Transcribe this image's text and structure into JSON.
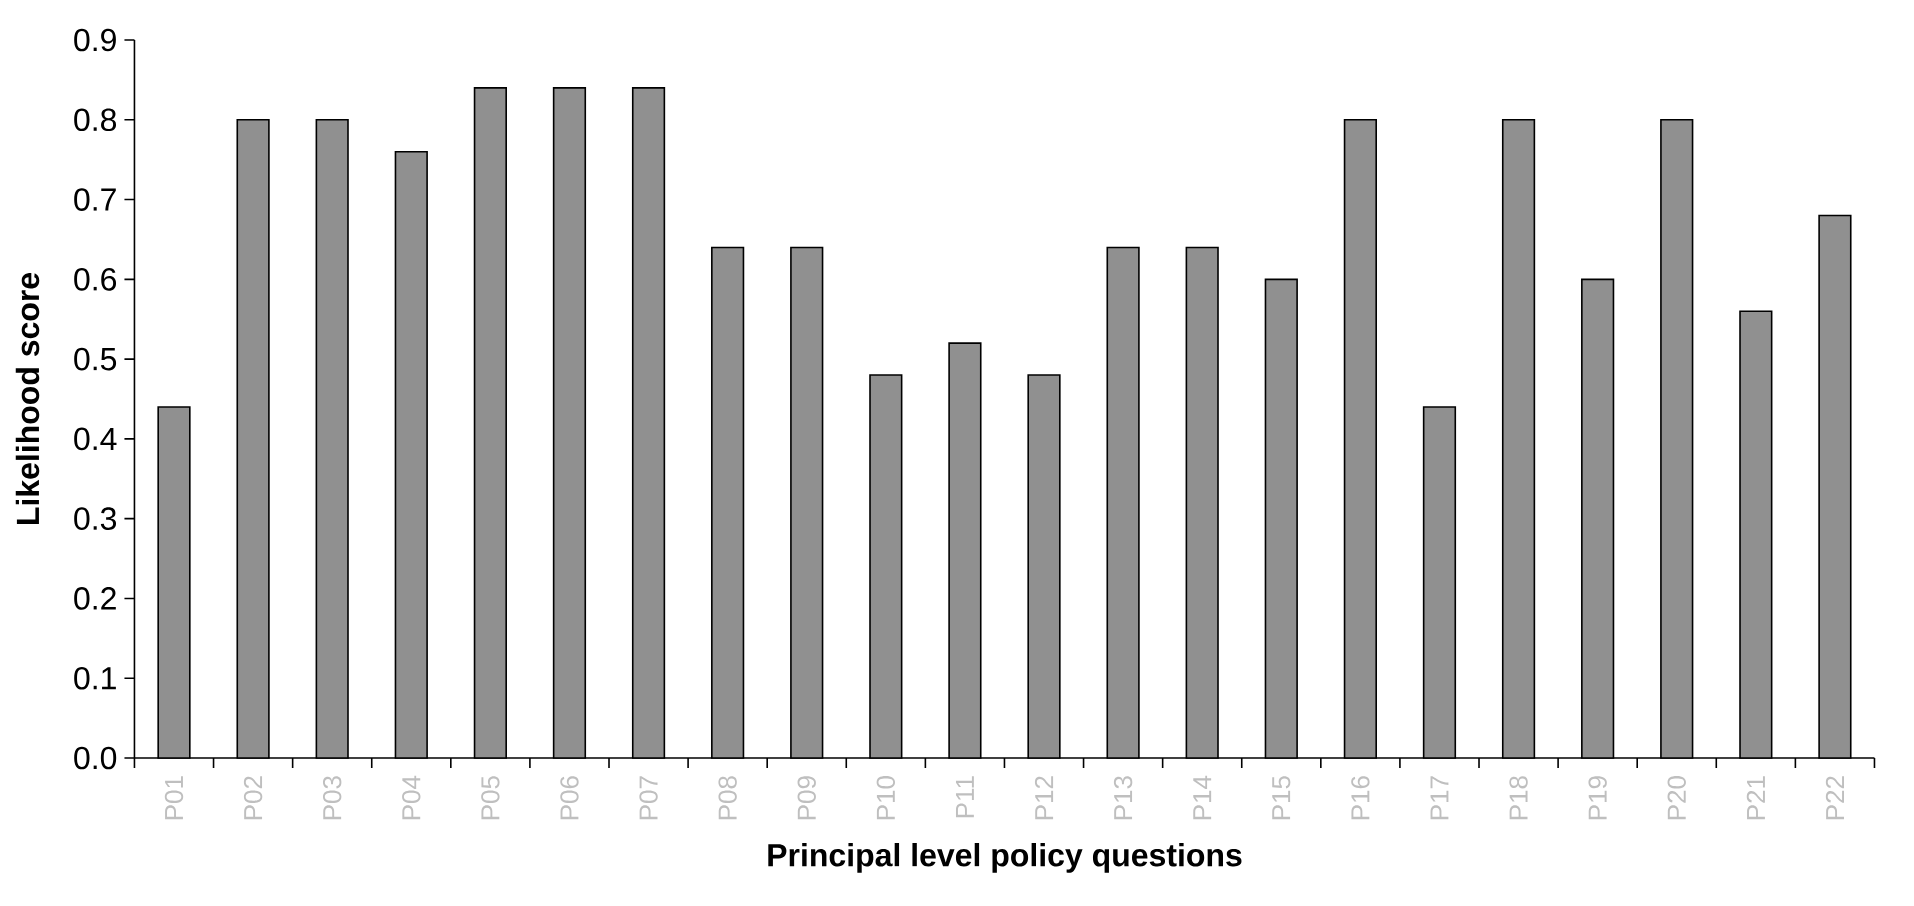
{
  "chart_data": {
    "type": "bar",
    "xlabel": "Principal level policy questions",
    "ylabel": "Likelihood score",
    "categories": [
      "P01",
      "P02",
      "P03",
      "P04",
      "P05",
      "P06",
      "P07",
      "P08",
      "P09",
      "P10",
      "P11",
      "P12",
      "P13",
      "P14",
      "P15",
      "P16",
      "P17",
      "P18",
      "P19",
      "P20",
      "P21",
      "P22"
    ],
    "values": [
      0.44,
      0.8,
      0.8,
      0.76,
      0.84,
      0.84,
      0.84,
      0.64,
      0.64,
      0.48,
      0.52,
      0.48,
      0.64,
      0.64,
      0.6,
      0.8,
      0.44,
      0.8,
      0.6,
      0.8,
      0.56,
      0.68
    ],
    "color": "#909090",
    "ylim": [
      0,
      0.9
    ],
    "yticks": [
      {
        "value": 0,
        "label": "0.0"
      },
      {
        "value": 0.1,
        "label": "0.1"
      },
      {
        "value": 0.2,
        "label": "0.2"
      },
      {
        "value": 0.3,
        "label": "0.3"
      },
      {
        "value": 0.4,
        "label": "0.4"
      },
      {
        "value": 0.5,
        "label": "0.5"
      },
      {
        "value": 0.6,
        "label": "0.6"
      },
      {
        "value": 0.7,
        "label": "0.7"
      },
      {
        "value": 0.8,
        "label": "0.8"
      },
      {
        "value": 0.9,
        "label": "0.9"
      }
    ]
  }
}
